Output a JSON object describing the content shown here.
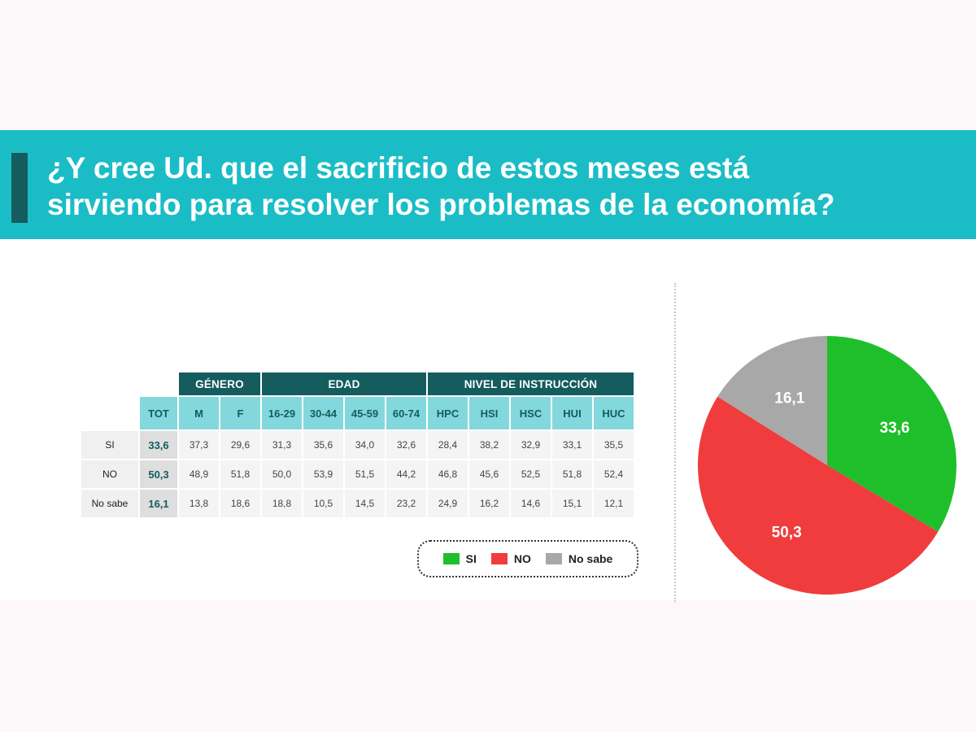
{
  "title_line1": "¿Y cree Ud. que el sacrificio de estos meses está",
  "title_line2": "sirviendo para resolver los problemas de la economía?",
  "group_headers": [
    "GÉNERO",
    "EDAD",
    "NIVEL DE INSTRUCCIÓN"
  ],
  "column_headers": [
    "TOT",
    "M",
    "F",
    "16-29",
    "30-44",
    "45-59",
    "60-74",
    "HPC",
    "HSI",
    "HSC",
    "HUI",
    "HUC"
  ],
  "rows": [
    {
      "label": "SI",
      "values": [
        "33,6",
        "37,3",
        "29,6",
        "31,3",
        "35,6",
        "34,0",
        "32,6",
        "28,4",
        "38,2",
        "32,9",
        "33,1",
        "35,5"
      ]
    },
    {
      "label": "NO",
      "values": [
        "50,3",
        "48,9",
        "51,8",
        "50,0",
        "53,9",
        "51,5",
        "44,2",
        "46,8",
        "45,6",
        "52,5",
        "51,8",
        "52,4"
      ]
    },
    {
      "label": "No sabe",
      "values": [
        "16,1",
        "13,8",
        "18,6",
        "18,8",
        "10,5",
        "14,5",
        "23,2",
        "24,9",
        "16,2",
        "14,6",
        "15,1",
        "12,1"
      ]
    }
  ],
  "legend": [
    {
      "label": "SI",
      "color": "#1fbf2c"
    },
    {
      "label": "NO",
      "color": "#f03c3c"
    },
    {
      "label": "No sabe",
      "color": "#a8a8a8"
    }
  ],
  "colors": {
    "banner": "#1abdc6",
    "dark_teal": "#145c5e",
    "light_teal": "#82d8dc"
  },
  "chart_data": {
    "type": "pie",
    "labels": [
      "SI",
      "NO",
      "No sabe"
    ],
    "values": [
      33.6,
      50.3,
      16.1
    ],
    "value_labels": [
      "33,6",
      "50,3",
      "16,1"
    ],
    "colors": [
      "#1fbf2c",
      "#f03c3c",
      "#a8a8a8"
    ],
    "start": "top",
    "direction": "clockwise"
  }
}
